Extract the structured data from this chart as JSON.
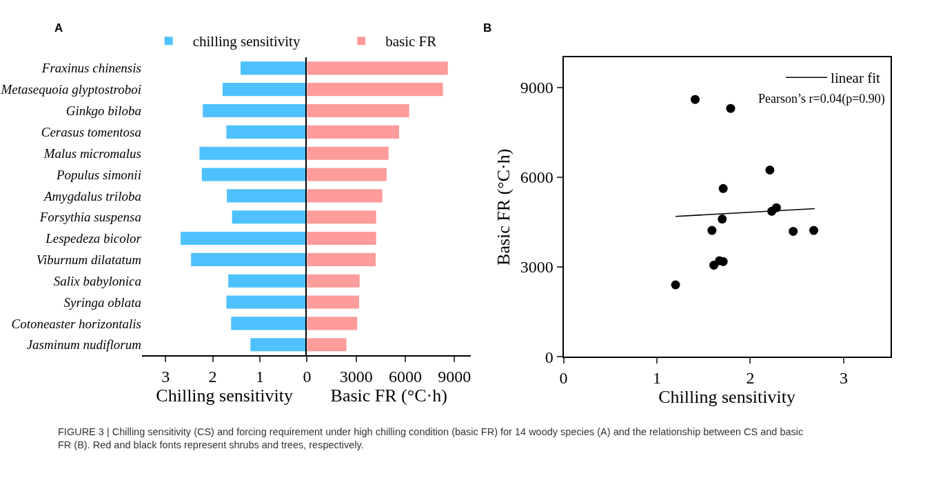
{
  "chart_data": [
    {
      "type": "bar",
      "title": "A",
      "orientation": "horizontal",
      "xlabel": "Chilling sensitivity",
      "categories": [
        "Fraxinus chinensis",
        "Metasequoia glyptostroboi",
        "Ginkgo biloba",
        "Cerasus tomentosa",
        "Malus micromalus",
        "Populus simonii",
        "Amygdalus triloba",
        "Forsythia suspensa",
        "Lespedeza bicolor",
        "Viburnum dilatatum",
        "Salix babylonica",
        "Syringa oblata",
        "Cotoneaster horizontalis",
        "Jasminum nudiflorum"
      ],
      "series": [
        {
          "name": "chilling sensitivity",
          "color": "#4fc1ff",
          "values": [
            1.41,
            1.79,
            2.21,
            1.71,
            2.28,
            2.23,
            1.7,
            1.59,
            2.68,
            2.46,
            1.67,
            1.71,
            1.61,
            1.2
          ]
        }
      ],
      "xlim": [
        3.5,
        0
      ],
      "xticks": [
        3,
        2,
        1,
        0
      ],
      "legend": "top",
      "grid": false
    },
    {
      "type": "bar",
      "orientation": "horizontal",
      "xlabel": "Basic FR (°C·h)",
      "categories": [
        null,
        null,
        null,
        null,
        null,
        null,
        null,
        null,
        null,
        null,
        null,
        null,
        null,
        null
      ],
      "series": [
        {
          "name": "basic FR",
          "color": "#fe9b9b",
          "values": [
            8600,
            8300,
            6240,
            5620,
            4980,
            4860,
            4600,
            4220,
            4220,
            4190,
            3210,
            3180,
            3060,
            2400
          ]
        }
      ],
      "xlim": [
        0,
        10000
      ],
      "xticks": [
        {
          "value": 0,
          "label": null
        },
        3000,
        6000,
        9000
      ],
      "legend": "top",
      "grid": false
    },
    {
      "type": "scatter",
      "title": "B",
      "xlabel": "Chilling sensitivity",
      "ylabel": "Basic FR (°C·h)",
      "series": [
        {
          "color": "#000000",
          "marker": "circle",
          "x": [
            1.41,
            1.79,
            2.21,
            1.71,
            2.28,
            2.23,
            1.7,
            1.59,
            2.68,
            2.46,
            1.67,
            1.71,
            1.61,
            1.2
          ],
          "values": [
            8600,
            8300,
            6240,
            5620,
            4980,
            4860,
            4600,
            4220,
            4220,
            4190,
            3210,
            3180,
            3060,
            2400
          ]
        },
        {
          "name": "linear fit",
          "type": "line",
          "color": "#000000",
          "marker": "none",
          "line_style": "solid",
          "x": [
            1.2,
            2.69
          ],
          "values": [
            4690,
            4950
          ]
        }
      ],
      "xlim": [
        0,
        3.5
      ],
      "xticks": [
        0,
        1,
        2,
        3
      ],
      "ylim": [
        0,
        10000
      ],
      "yticks": [
        0,
        3000,
        6000,
        9000
      ],
      "legend": "top right",
      "grid": false,
      "annotations": [
        "Pearson’s r=0.04(p=0.90)",
        "FIGURE 3 | Chilling sensitivity (CS) and forcing requirement under high chilling condition (basic FR) for 14 woody species (A) and the relationship between CS and basic FR (B). Red and black fonts represent shrubs and trees, respectively."
      ]
    }
  ]
}
